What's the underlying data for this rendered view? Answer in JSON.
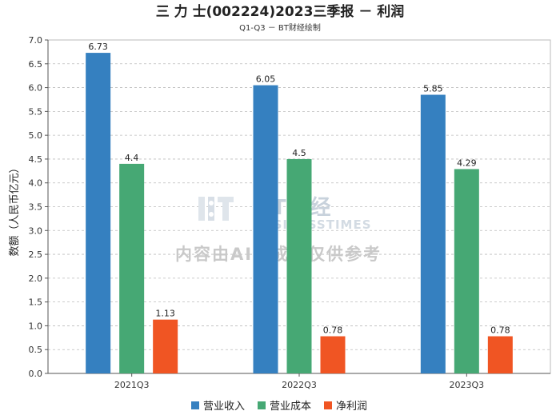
{
  "colors": {
    "revenue": "#3580c0",
    "cost": "#46a874",
    "profit": "#f05523",
    "grid": "#bbbbbb",
    "axis": "#555555"
  },
  "watermark": {
    "brand": "BT财经",
    "sub": "BUSINESSTIMES",
    "note": "内容由AI生成，仅供参考"
  },
  "chart_data": {
    "type": "bar",
    "title": "三 力 士(002224)2023三季报 － 利润",
    "subtitle": "Q1-Q3 － BT财经绘制",
    "ylabel": "数额（人民币亿元）",
    "xlabel": "",
    "ylim": [
      0,
      7.0
    ],
    "yticks": [
      "0.0",
      "0.5",
      "1.0",
      "1.5",
      "2.0",
      "2.5",
      "3.0",
      "3.5",
      "4.0",
      "4.5",
      "5.0",
      "5.5",
      "6.0",
      "6.5",
      "7.0"
    ],
    "grid": true,
    "legend_position": "bottom",
    "categories": [
      "2021Q3",
      "2022Q3",
      "2023Q3"
    ],
    "series": [
      {
        "name": "营业收入",
        "color_key": "revenue",
        "values": [
          6.73,
          6.05,
          5.85
        ],
        "labels": [
          "6.73",
          "6.05",
          "5.85"
        ]
      },
      {
        "name": "营业成本",
        "color_key": "cost",
        "values": [
          4.4,
          4.5,
          4.29
        ],
        "labels": [
          "4.4",
          "4.5",
          "4.29"
        ]
      },
      {
        "name": "净利润",
        "color_key": "profit",
        "values": [
          1.13,
          0.78,
          0.78
        ],
        "labels": [
          "1.13",
          "0.78",
          "0.78"
        ]
      }
    ]
  }
}
